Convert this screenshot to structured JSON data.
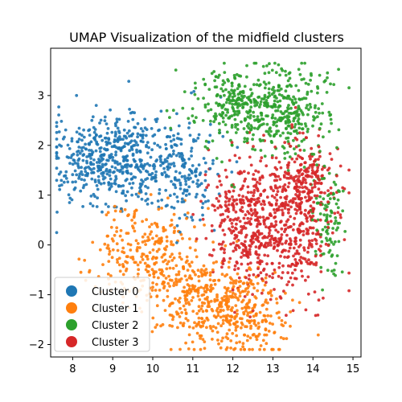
{
  "chart_data": {
    "type": "scatter",
    "title": "UMAP Visualization of the midfield clusters",
    "xlabel": "",
    "ylabel": "",
    "xlim": [
      7.45,
      15.2
    ],
    "ylim": [
      -2.25,
      3.95
    ],
    "xticks": [
      8,
      9,
      10,
      11,
      12,
      13,
      14,
      15
    ],
    "yticks": [
      -2,
      -1,
      0,
      1,
      2,
      3
    ],
    "grid": false,
    "legend_position": "lower-left",
    "series": [
      {
        "name": "Cluster 0",
        "color": "#1f77b4",
        "approx_points": 700,
        "regions": [
          {
            "cx": 8.6,
            "cy": 1.6,
            "sx": 0.55,
            "sy": 0.45,
            "weight": 0.45
          },
          {
            "cx": 9.6,
            "cy": 1.8,
            "sx": 0.55,
            "sy": 0.45,
            "weight": 0.3
          },
          {
            "cx": 10.7,
            "cy": 1.5,
            "sx": 0.45,
            "sy": 0.5,
            "weight": 0.25
          }
        ]
      },
      {
        "name": "Cluster 1",
        "color": "#ff7f0e",
        "approx_points": 800,
        "regions": [
          {
            "cx": 9.9,
            "cy": -0.2,
            "sx": 0.6,
            "sy": 0.55,
            "weight": 0.35
          },
          {
            "cx": 11.2,
            "cy": -1.0,
            "sx": 0.6,
            "sy": 0.5,
            "weight": 0.35
          },
          {
            "cx": 12.3,
            "cy": -1.4,
            "sx": 0.55,
            "sy": 0.45,
            "weight": 0.3
          }
        ]
      },
      {
        "name": "Cluster 2",
        "color": "#2ca02c",
        "approx_points": 650,
        "regions": [
          {
            "cx": 12.2,
            "cy": 2.8,
            "sx": 0.6,
            "sy": 0.4,
            "weight": 0.45
          },
          {
            "cx": 13.4,
            "cy": 2.7,
            "sx": 0.5,
            "sy": 0.45,
            "weight": 0.4
          },
          {
            "cx": 14.4,
            "cy": 0.5,
            "sx": 0.2,
            "sy": 0.55,
            "weight": 0.15
          }
        ]
      },
      {
        "name": "Cluster 3",
        "color": "#d62728",
        "approx_points": 900,
        "regions": [
          {
            "cx": 12.4,
            "cy": 0.5,
            "sx": 0.55,
            "sy": 0.6,
            "weight": 0.4
          },
          {
            "cx": 13.4,
            "cy": 0.3,
            "sx": 0.55,
            "sy": 0.65,
            "weight": 0.4
          },
          {
            "cx": 13.8,
            "cy": 1.3,
            "sx": 0.35,
            "sy": 0.4,
            "weight": 0.2
          }
        ]
      }
    ]
  }
}
